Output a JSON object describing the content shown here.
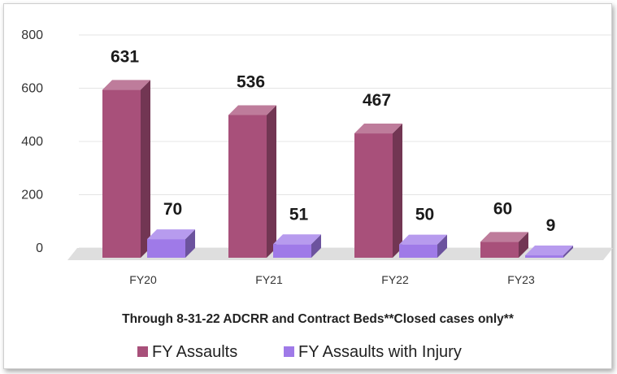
{
  "chart_data": {
    "type": "bar",
    "style": "3d-clustered-column",
    "categories": [
      "FY20",
      "FY21",
      "FY22",
      "FY23"
    ],
    "series": [
      {
        "name": "FY Assaults",
        "values": [
          631,
          536,
          467,
          60
        ],
        "color": "#a8507a"
      },
      {
        "name": "FY Assaults with Injury",
        "values": [
          70,
          51,
          50,
          9
        ],
        "color": "#9f7ae8"
      }
    ],
    "data_labels": [
      [
        "631",
        "536",
        "467",
        "60"
      ],
      [
        "70",
        "51",
        "50",
        "9"
      ]
    ],
    "y_ticks": [
      "0",
      "200",
      "400",
      "600",
      "800"
    ],
    "ylim": [
      0,
      800
    ],
    "subtitle": "Through 8-31-22 ADCRR and Contract Beds**Closed cases only**",
    "grid": true,
    "legend_position": "bottom",
    "colors": {
      "gridline": "#e4e4e4",
      "floor": "#dedede"
    }
  }
}
